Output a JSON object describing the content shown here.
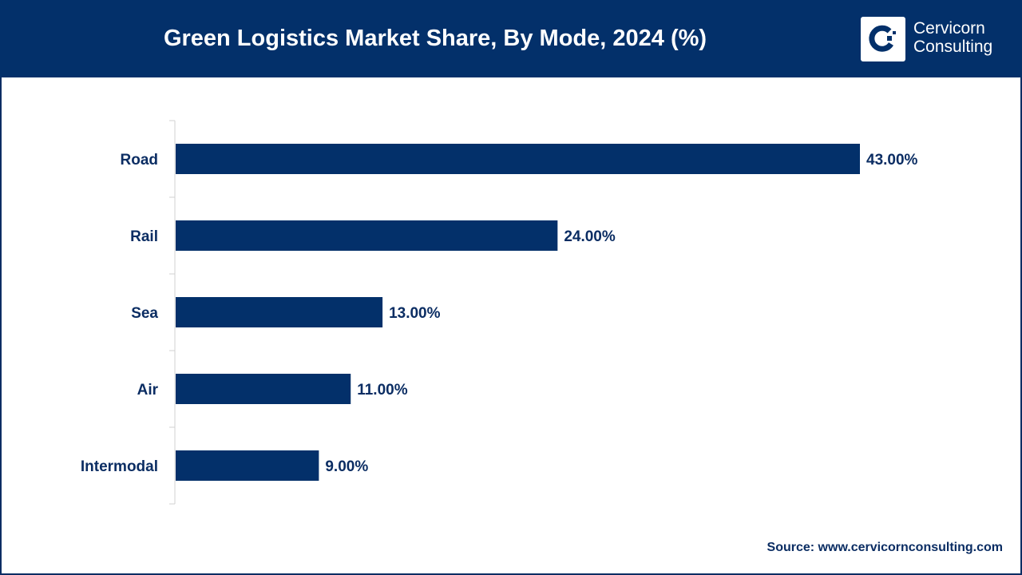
{
  "header": {
    "title": "Green Logistics Market Share, By Mode, 2024 (%)",
    "logo_text": [
      "Cervicorn",
      "Consulting"
    ]
  },
  "source": "Source: www.cervicornconsulting.com",
  "chart_data": {
    "type": "bar",
    "orientation": "horizontal",
    "title": "Green Logistics Market Share, By Mode, 2024 (%)",
    "categories": [
      "Road",
      "Rail",
      "Sea",
      "Air",
      "Intermodal"
    ],
    "values": [
      43,
      24,
      13,
      11,
      9
    ],
    "data_labels": [
      "43.00%",
      "24.00%",
      "13.00%",
      "11.00%",
      "9.00%"
    ],
    "xlim": [
      0,
      43
    ],
    "grid": false,
    "bar_color": "#03306a"
  }
}
